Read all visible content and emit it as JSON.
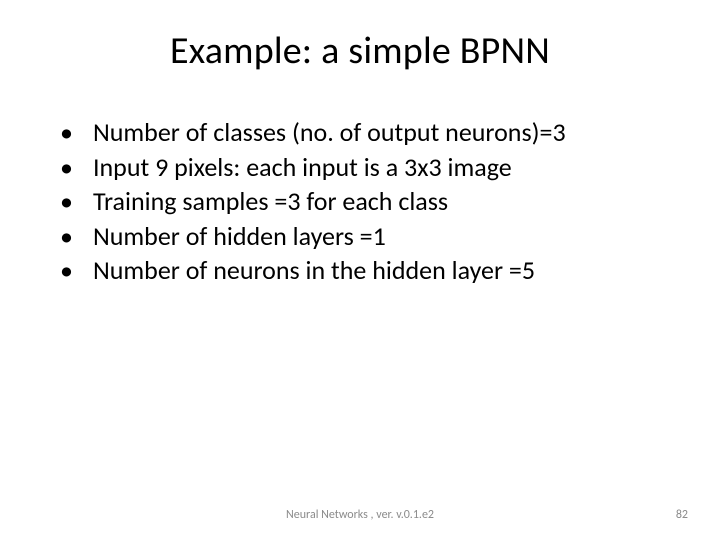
{
  "slide": {
    "title": "Example: a simple BPNN",
    "bullets": [
      "Number of classes (no. of output neurons)=3",
      "Input 9 pixels: each input is a 3x3 image",
      "Training samples =3 for each class",
      "Number of hidden layers =1",
      "Number of neurons in the hidden layer =5"
    ],
    "footer_text": "Neural Networks , ver. v.0.1.e2",
    "page_number": "82"
  },
  "style": {
    "background_color": "#ffffff",
    "title_fontsize": 38,
    "title_color": "#000000",
    "bullet_fontsize": 26,
    "bullet_color": "#000000",
    "footer_fontsize": 12,
    "footer_color": "#8b8b8b",
    "font_family": "Calibri"
  }
}
